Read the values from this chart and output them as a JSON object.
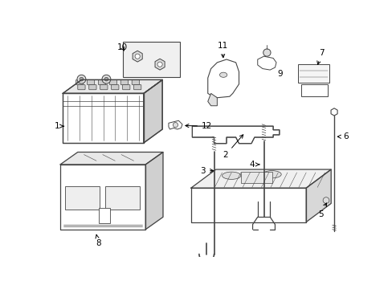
{
  "bg_color": "#ffffff",
  "lc": "#444444",
  "lc_thin": "#666666",
  "fig_w": 4.89,
  "fig_h": 3.6,
  "dpi": 100
}
